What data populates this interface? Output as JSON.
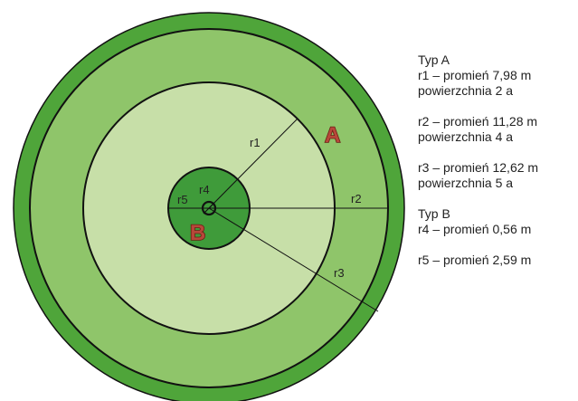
{
  "diagram": {
    "zone_labels": {
      "a": "A",
      "b": "B"
    },
    "radius_labels": {
      "r1": "r1",
      "r2": "r2",
      "r3": "r3",
      "r4": "r4",
      "r5": "r5"
    },
    "colors": {
      "outer_ring": "#4fa53a",
      "middle_ring": "#8fc56a",
      "inner_disk": "#c7dfa8",
      "type_b_disk": "#3f9b3a",
      "outline": "#111111",
      "zone_letter": "#b7483a",
      "zone_letter_outline": "#6b1e14"
    }
  },
  "legend": {
    "groups": [
      {
        "lines": [
          "Typ A",
          "r1 – promień 7,98 m",
          "powierzchnia 2 a"
        ]
      },
      {
        "lines": [
          "r2 – promień 11,28 m",
          "powierzchnia 4 a"
        ]
      },
      {
        "lines": [
          "r3 – promień 12,62 m",
          "powierzchnia 5 a"
        ]
      },
      {
        "lines": [
          "Typ B",
          "r4 – promień 0,56 m"
        ]
      },
      {
        "lines": [
          "r5 – promień 2,59 m"
        ]
      }
    ]
  }
}
